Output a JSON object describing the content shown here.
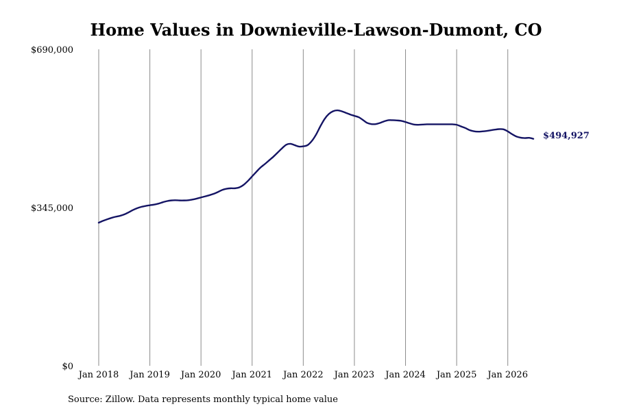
{
  "chart_data": {
    "type": "line",
    "title": "Home Values in Downieville-Lawson-Dumont, CO",
    "source": "Source: Zillow. Data represents monthly typical home value",
    "ylim": [
      0,
      690000
    ],
    "y_ticks": [
      {
        "value": 0,
        "label": "$0"
      },
      {
        "value": 345000,
        "label": "$345,000"
      },
      {
        "value": 690000,
        "label": "$690,000"
      }
    ],
    "x_ticks": [
      {
        "value": "2018-01",
        "label": "Jan 2018"
      },
      {
        "value": "2019-01",
        "label": "Jan 2019"
      },
      {
        "value": "2020-01",
        "label": "Jan 2020"
      },
      {
        "value": "2021-01",
        "label": "Jan 2021"
      },
      {
        "value": "2022-01",
        "label": "Jan 2022"
      },
      {
        "value": "2023-01",
        "label": "Jan 2023"
      },
      {
        "value": "2024-01",
        "label": "Jan 2024"
      },
      {
        "value": "2025-01",
        "label": "Jan 2025"
      },
      {
        "value": "2026-01",
        "label": "Jan 2026"
      }
    ],
    "xlim": [
      "2018-01",
      "2026-07"
    ],
    "grid": "vertical",
    "line_color": "#141464",
    "end_label": "$494,927",
    "series": [
      {
        "x": [
          "2018-01",
          "2018-02",
          "2018-03",
          "2018-04",
          "2018-05",
          "2018-06",
          "2018-07",
          "2018-08",
          "2018-09",
          "2018-10",
          "2018-11",
          "2018-12",
          "2019-01",
          "2019-02",
          "2019-03",
          "2019-04",
          "2019-05",
          "2019-06",
          "2019-07",
          "2019-08",
          "2019-09",
          "2019-10",
          "2019-11",
          "2019-12",
          "2020-01",
          "2020-02",
          "2020-03",
          "2020-04",
          "2020-05",
          "2020-06",
          "2020-07",
          "2020-08",
          "2020-09",
          "2020-10",
          "2020-11",
          "2020-12",
          "2021-01",
          "2021-02",
          "2021-03",
          "2021-04",
          "2021-05",
          "2021-06",
          "2021-07",
          "2021-08",
          "2021-09",
          "2021-10",
          "2021-11",
          "2021-12",
          "2022-01",
          "2022-02",
          "2022-03",
          "2022-04",
          "2022-05",
          "2022-06",
          "2022-07",
          "2022-08",
          "2022-09",
          "2022-10",
          "2022-11",
          "2022-12",
          "2023-01",
          "2023-02",
          "2023-03",
          "2023-04",
          "2023-05",
          "2023-06",
          "2023-07",
          "2023-08",
          "2023-09",
          "2023-10",
          "2023-11",
          "2023-12",
          "2024-01",
          "2024-02",
          "2024-03",
          "2024-04",
          "2024-05",
          "2024-06",
          "2024-07",
          "2024-08",
          "2024-09",
          "2024-10",
          "2024-11",
          "2024-12",
          "2025-01",
          "2025-02",
          "2025-03",
          "2025-04",
          "2025-05",
          "2025-06",
          "2025-07",
          "2025-08",
          "2025-09",
          "2025-10",
          "2025-11",
          "2025-12",
          "2026-01",
          "2026-02",
          "2026-03",
          "2026-04",
          "2026-05",
          "2026-06",
          "2026-07"
        ],
        "values": [
          312000,
          316000,
          319500,
          322500,
          325000,
          327000,
          330000,
          334500,
          339500,
          343500,
          346500,
          348500,
          350000,
          351500,
          353500,
          356500,
          359000,
          360500,
          361000,
          360500,
          360500,
          361000,
          362500,
          364500,
          367000,
          369500,
          372000,
          375000,
          379000,
          383500,
          386000,
          387000,
          387000,
          389000,
          394500,
          403000,
          413000,
          423000,
          432500,
          440000,
          448000,
          456000,
          465000,
          474000,
          482000,
          484000,
          481000,
          478000,
          478500,
          481000,
          490000,
          504000,
          522000,
          538000,
          549000,
          555000,
          557000,
          555000,
          551500,
          548000,
          545000,
          542000,
          536000,
          529500,
          527000,
          527000,
          529500,
          533000,
          535500,
          535500,
          535000,
          534000,
          531500,
          528500,
          526000,
          525500,
          526000,
          526500,
          526500,
          526500,
          526500,
          526500,
          526500,
          526500,
          525500,
          522000,
          518500,
          514000,
          511500,
          510500,
          511000,
          512000,
          513500,
          515000,
          516000,
          515500,
          511000,
          505000,
          500000,
          497500,
          496500,
          497000,
          494927
        ]
      }
    ]
  }
}
